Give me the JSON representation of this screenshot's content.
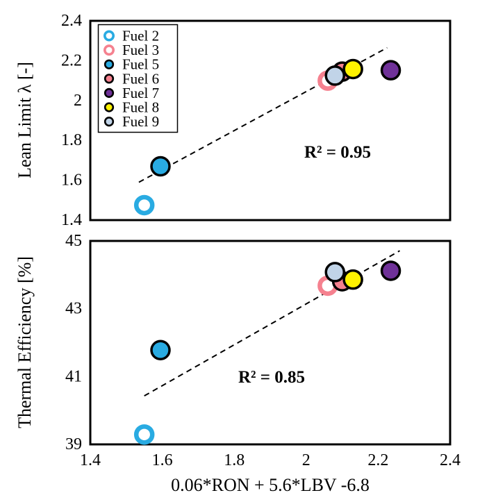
{
  "figure": {
    "background": "#ffffff",
    "frame_color": "#000000"
  },
  "colors": {
    "cyan": "#29abe2",
    "pink": "#f5818f",
    "purple": "#6f3198",
    "yellow": "#fff200",
    "light_blue": "#c1d4e8",
    "black": "#000000",
    "white": "#ffffff"
  },
  "legend": {
    "items": [
      {
        "label": "Fuel 2",
        "marker": "open-circle-icon",
        "color": "#29abe2"
      },
      {
        "label": "Fuel 3",
        "marker": "open-circle-icon",
        "color": "#f5818f"
      },
      {
        "label": "Fuel 5",
        "marker": "filled-circle-icon",
        "color": "#29abe2"
      },
      {
        "label": "Fuel 6",
        "marker": "filled-circle-icon",
        "color": "#f5818f"
      },
      {
        "label": "Fuel 7",
        "marker": "filled-circle-icon",
        "color": "#6f3198"
      },
      {
        "label": "Fuel 8",
        "marker": "filled-circle-icon",
        "color": "#fff200"
      },
      {
        "label": "Fuel 9",
        "marker": "filled-circle-icon",
        "color": "#c1d4e8"
      }
    ]
  },
  "chart_data": [
    {
      "type": "scatter",
      "panel": "top",
      "title": "",
      "ylabel": "Lean Limit λ [-]",
      "ylim": [
        1.4,
        2.4
      ],
      "yticks": [
        1.4,
        1.6,
        1.8,
        2,
        2.2,
        2.4
      ],
      "ytick_labels": [
        "1.4",
        "1.6",
        "1.8",
        "2",
        "2.2",
        "2.4"
      ],
      "xlim": [
        1.4,
        2.4
      ],
      "grid": false,
      "legend_position": "upper-left",
      "annotation": {
        "text": "R² = 0.95",
        "x": 2.085,
        "y": 1.74
      },
      "trendline": {
        "style": "dashed",
        "x1": 1.535,
        "y1": 1.59,
        "x2": 2.225,
        "y2": 2.265
      },
      "points": [
        {
          "name": "Fuel 3",
          "x": 2.06,
          "y": 2.1,
          "open": true,
          "color": "#f5818f"
        },
        {
          "name": "Fuel 6",
          "x": 2.1,
          "y": 2.145,
          "open": false,
          "color": "#f5818f"
        },
        {
          "name": "Fuel 9",
          "x": 2.08,
          "y": 2.125,
          "open": false,
          "color": "#c1d4e8"
        },
        {
          "name": "Fuel 8",
          "x": 2.13,
          "y": 2.158,
          "open": false,
          "color": "#fff200"
        },
        {
          "name": "Fuel 7",
          "x": 2.235,
          "y": 2.152,
          "open": false,
          "color": "#6f3198"
        },
        {
          "name": "Fuel 2",
          "x": 1.55,
          "y": 1.475,
          "open": true,
          "color": "#29abe2"
        },
        {
          "name": "Fuel 5",
          "x": 1.595,
          "y": 1.67,
          "open": false,
          "color": "#29abe2"
        }
      ]
    },
    {
      "type": "scatter",
      "panel": "bottom",
      "title": "",
      "ylabel": "Thermal Efficiency [%]",
      "ylim": [
        39,
        45
      ],
      "yticks": [
        39,
        41,
        43,
        45
      ],
      "ytick_labels": [
        "39",
        "41",
        "43",
        "45"
      ],
      "xlim": [
        1.4,
        2.4
      ],
      "xticks": [
        1.4,
        1.6,
        1.8,
        2,
        2.2,
        2.4
      ],
      "xtick_labels": [
        "1.4",
        "1.6",
        "1.8",
        "2",
        "2.2",
        "2.4"
      ],
      "xlabel": "0.06*RON + 5.6*LBV -6.8",
      "grid": false,
      "annotation": {
        "text": "R² = 0.85",
        "x": 1.9,
        "y": 41.0
      },
      "trendline": {
        "style": "dashed",
        "x1": 1.55,
        "y1": 40.43,
        "x2": 2.26,
        "y2": 44.71
      },
      "points": [
        {
          "name": "Fuel 3",
          "x": 2.06,
          "y": 43.68,
          "open": true,
          "color": "#f5818f"
        },
        {
          "name": "Fuel 6",
          "x": 2.1,
          "y": 43.81,
          "open": false,
          "color": "#f5818f"
        },
        {
          "name": "Fuel 9",
          "x": 2.08,
          "y": 44.08,
          "open": false,
          "color": "#c1d4e8"
        },
        {
          "name": "Fuel 8",
          "x": 2.13,
          "y": 43.86,
          "open": false,
          "color": "#fff200"
        },
        {
          "name": "Fuel 7",
          "x": 2.235,
          "y": 44.12,
          "open": false,
          "color": "#6f3198"
        },
        {
          "name": "Fuel 2",
          "x": 1.55,
          "y": 39.29,
          "open": true,
          "color": "#29abe2"
        },
        {
          "name": "Fuel 5",
          "x": 1.595,
          "y": 41.78,
          "open": false,
          "color": "#29abe2"
        }
      ]
    }
  ]
}
